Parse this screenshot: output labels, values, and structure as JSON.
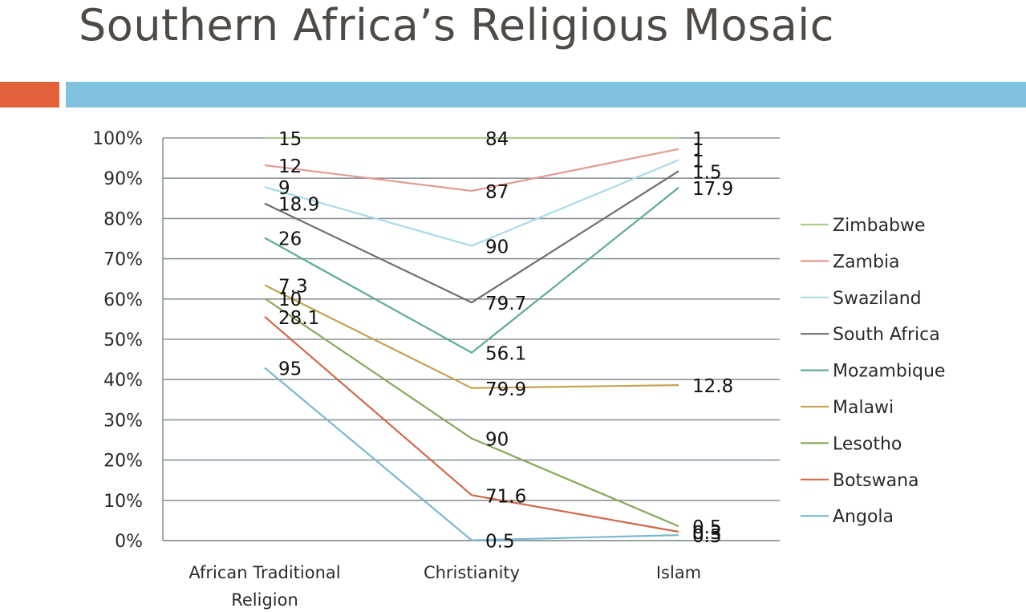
{
  "slide": {
    "title": "Southern Africa’s Religious Mosaic",
    "accent_colors": {
      "orange": "#e2603a",
      "blue": "#7fc1de"
    }
  },
  "chart_data": {
    "type": "line",
    "stacking": "percent",
    "title": "",
    "xlabel": "",
    "ylabel": "",
    "categories": [
      "African Traditional Religion",
      "Christianity",
      "Islam"
    ],
    "y_ticks": [
      "0%",
      "10%",
      "20%",
      "30%",
      "40%",
      "50%",
      "60%",
      "70%",
      "80%",
      "90%",
      "100%"
    ],
    "ylim": [
      0,
      100
    ],
    "grid": true,
    "legend_position": "right",
    "series": [
      {
        "name": "Angola",
        "color": "#7cb9cf",
        "values": [
          95,
          0.5,
          0.5
        ]
      },
      {
        "name": "Botswana",
        "color": "#d0694a",
        "values": [
          28.1,
          71.6,
          0.3
        ]
      },
      {
        "name": "Lesotho",
        "color": "#86a85a",
        "values": [
          10,
          90,
          0.5
        ]
      },
      {
        "name": "Malawi",
        "color": "#c4a351",
        "values": [
          7.3,
          79.9,
          12.8
        ]
      },
      {
        "name": "Mozambique",
        "color": "#5dae8a",
        "values": [
          26,
          56.1,
          17.9
        ]
      },
      {
        "name": "South Africa",
        "color": "#6d6d6d",
        "values": [
          18.9,
          79.7,
          1.5
        ]
      },
      {
        "name": "Swaziland",
        "color": "#a9dbe8",
        "values": [
          9,
          90,
          1
        ]
      },
      {
        "name": "Zambia",
        "color": "#e39a93",
        "values": [
          12,
          87,
          1
        ]
      },
      {
        "name": "Zimbabwe",
        "color": "#a9cd8a",
        "values": [
          15,
          84,
          1
        ]
      }
    ]
  }
}
